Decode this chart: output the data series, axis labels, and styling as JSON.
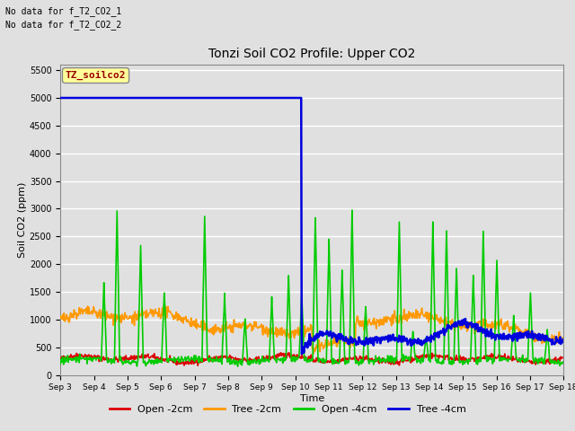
{
  "title": "Tonzi Soil CO2 Profile: Upper CO2",
  "xlabel": "Time",
  "ylabel": "Soil CO2 (ppm)",
  "ylim": [
    0,
    5600
  ],
  "yticks": [
    0,
    500,
    1000,
    1500,
    2000,
    2500,
    3000,
    3500,
    4000,
    4500,
    5000,
    5500
  ],
  "background_color": "#e0e0e0",
  "plot_bg_color": "#e0e0e0",
  "legend_bg_color": "#ffffff",
  "grid_color": "#ffffff",
  "no_data_text": [
    "No data for f_T2_CO2_1",
    "No data for f_T2_CO2_2"
  ],
  "legend_label_text": "TZ_soilco2",
  "legend_label_color": "#990000",
  "legend_label_bg": "#ffff99",
  "xtick_labels": [
    "Sep 3",
    "Sep 4",
    "Sep 5",
    "Sep 6",
    "Sep 7",
    "Sep 8",
    "Sep 9",
    "Sep 10",
    "Sep 11",
    "Sep 12",
    "Sep 13",
    "Sep 14",
    "Sep 15",
    "Sep 16",
    "Sep 17",
    "Sep 18"
  ],
  "series": {
    "open_2cm": {
      "color": "#dd0000",
      "label": "Open -2cm",
      "linewidth": 1.2
    },
    "tree_2cm": {
      "color": "#ff9900",
      "label": "Tree -2cm",
      "linewidth": 1.2
    },
    "open_4cm": {
      "color": "#00cc00",
      "label": "Open -4cm",
      "linewidth": 1.2
    },
    "tree_4cm": {
      "color": "#0000dd",
      "label": "Tree -4cm",
      "linewidth": 1.8
    }
  }
}
